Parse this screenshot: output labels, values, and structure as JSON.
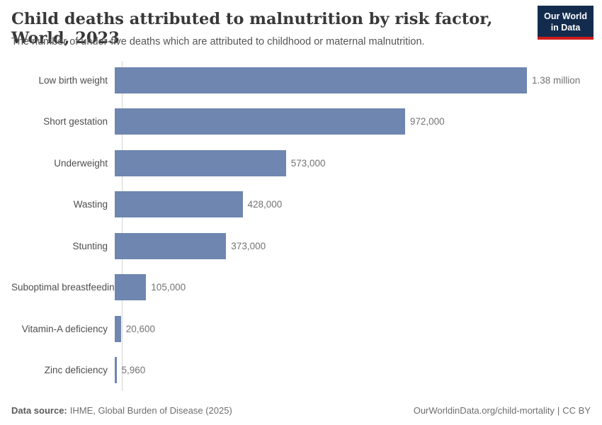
{
  "header": {
    "title": "Child deaths attributed to malnutrition by risk factor, World, 2023",
    "subtitle": "The number of under-five deaths which are attributed to childhood or maternal malnutrition.",
    "logo": {
      "line1": "Our World",
      "line2": "in Data"
    }
  },
  "chart_data": {
    "type": "bar",
    "orientation": "horizontal",
    "title": "Child deaths attributed to malnutrition by risk factor, World, 2023",
    "categories": [
      "Low birth weight",
      "Short gestation",
      "Underweight",
      "Wasting",
      "Stunting",
      "Suboptimal breastfeeding",
      "Vitamin-A deficiency",
      "Zinc deficiency"
    ],
    "values": [
      1380000,
      972000,
      573000,
      428000,
      373000,
      105000,
      20600,
      5960
    ],
    "value_labels": [
      "1.38 million",
      "972,000",
      "573,000",
      "428,000",
      "373,000",
      "105,000",
      "20,600",
      "5,960"
    ],
    "xlim": [
      0,
      1380000
    ],
    "grid": false,
    "legend": "none",
    "bar_color": "#6e86b0"
  },
  "footer": {
    "datasource_label": "Data source:",
    "datasource_value": "IHME, Global Burden of Disease (2025)",
    "credit_url": "OurWorldinData.org/child-mortality",
    "credit_separator": "|",
    "credit_license": "CC BY"
  },
  "colors": {
    "bar": "#6e86b0",
    "title": "#383838",
    "subtitle": "#555555",
    "category_label": "#4e4e4e",
    "value_label": "#737373",
    "axis_line": "#d4d4d4",
    "logo_navy": "#132c4e",
    "logo_red": "#d01d1d",
    "footer_text": "#6e6e6e"
  }
}
